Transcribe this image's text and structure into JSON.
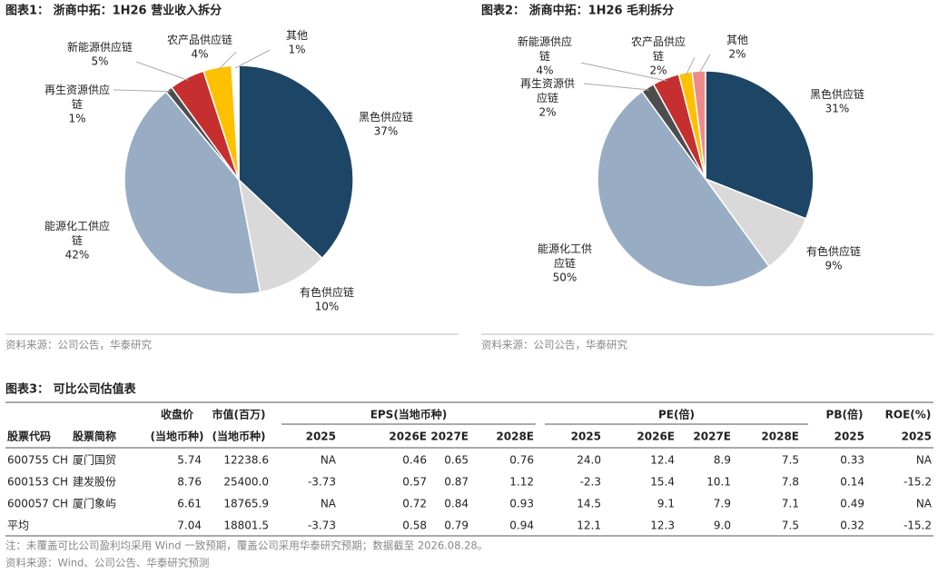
{
  "chart_data": [
    {
      "type": "pie",
      "title": "图表1：  浙商中拓：1H26 营业收入拆分",
      "source": "资料来源：公司公告，华泰研究",
      "categories": [
        "黑色供应链",
        "有色供应链",
        "能源化工供应链",
        "再生资源供应链",
        "新能源供应链",
        "农产品供应链",
        "其他"
      ],
      "values": [
        37,
        10,
        42,
        1,
        5,
        4,
        1
      ],
      "value_labels": [
        "37%",
        "10%",
        "42%",
        "1%",
        "5%",
        "4%",
        "1%"
      ],
      "colors": [
        "#1d4565",
        "#d9d9d9",
        "#98adc4",
        "#4d4d4d",
        "#c62f2f",
        "#ffc000",
        "#ffffff"
      ]
    },
    {
      "type": "pie",
      "title": "图表2：  浙商中拓：1H26 毛利拆分",
      "source": "资料来源：公司公告，华泰研究",
      "categories": [
        "黑色供应链",
        "有色供应链",
        "能源化工供应链",
        "再生资源供应链",
        "新能源供应链",
        "农产品供应链",
        "其他"
      ],
      "values": [
        31,
        9,
        50,
        2,
        4,
        2,
        2
      ],
      "value_labels": [
        "31%",
        "9%",
        "50%",
        "2%",
        "4%",
        "2%",
        "2%"
      ],
      "colors": [
        "#1d4565",
        "#d9d9d9",
        "#98adc4",
        "#4d4d4d",
        "#c62f2f",
        "#ffc000",
        "#f08a8a"
      ]
    }
  ],
  "table": {
    "title": "图表3：  可比公司估值表",
    "header_top": [
      "收盘价",
      "市值(百万)",
      "EPS(当地币种)",
      "PE(倍)",
      "PB(倍)",
      "ROE(%)"
    ],
    "header": [
      "股票代码",
      "股票简称",
      "(当地币种)",
      "(当地币种)",
      "2025",
      "2026E",
      "2027E",
      "2028E",
      "2025",
      "2026E",
      "2027E",
      "2028E",
      "2025",
      "2025"
    ],
    "rows": [
      [
        "600755 CH",
        "厦门国贸",
        "5.74",
        "12238.6",
        "NA",
        "0.46",
        "0.65",
        "0.76",
        "24.0",
        "12.4",
        "8.9",
        "7.5",
        "0.33",
        "NA"
      ],
      [
        "600153 CH",
        "建发股份",
        "8.76",
        "25400.0",
        "-3.73",
        "0.57",
        "0.87",
        "1.12",
        "-2.3",
        "15.4",
        "10.1",
        "7.8",
        "0.14",
        "-15.2"
      ],
      [
        "600057 CH",
        "厦门象屿",
        "6.61",
        "18765.9",
        "NA",
        "0.72",
        "0.84",
        "0.93",
        "14.5",
        "9.1",
        "7.9",
        "7.1",
        "0.49",
        "NA"
      ],
      [
        "平均",
        null,
        "7.04",
        "18801.5",
        "-3.73",
        "0.58",
        "0.79",
        "0.94",
        "12.1",
        "12.3",
        "9.0",
        "7.5",
        "0.32",
        "-15.2"
      ]
    ],
    "note": "注：未覆盖可比公司盈利均采用 Wind 一致预期，覆盖公司采用华泰研究预期；数据截至 2026.08.28。",
    "source": "资料来源：Wind、公司公告、华泰研究预测"
  }
}
